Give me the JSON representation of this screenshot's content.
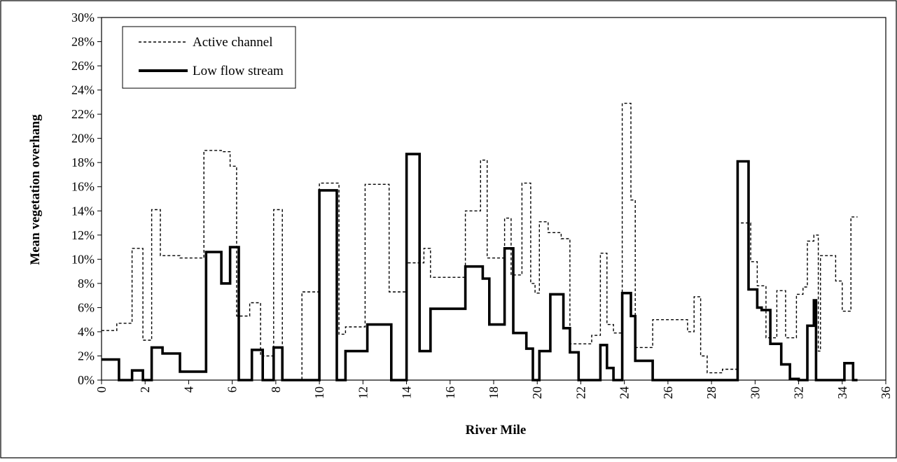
{
  "chart_data": {
    "type": "line",
    "step": true,
    "title": "",
    "xlabel": "River Mile",
    "ylabel": "Mean vegetation overhang",
    "xlim": [
      0,
      36
    ],
    "ylim": [
      0,
      0.3
    ],
    "xticks": [
      "0",
      "2",
      "4",
      "6",
      "8",
      "10",
      "12",
      "14",
      "16",
      "18",
      "20",
      "22",
      "24",
      "26",
      "28",
      "30",
      "32",
      "34",
      "36"
    ],
    "yticks": [
      "0%",
      "2%",
      "4%",
      "6%",
      "8%",
      "10%",
      "12%",
      "14%",
      "16%",
      "18%",
      "20%",
      "22%",
      "24%",
      "26%",
      "28%",
      "30%"
    ],
    "grid": false,
    "legend_position": "top-left",
    "series": [
      {
        "name": "Active channel",
        "style": "dashed",
        "points": [
          [
            0,
            0.041
          ],
          [
            0.7,
            0.041
          ],
          [
            0.7,
            0.047
          ],
          [
            1.4,
            0.047
          ],
          [
            1.4,
            0.109
          ],
          [
            1.9,
            0.109
          ],
          [
            1.9,
            0.033
          ],
          [
            2.3,
            0.033
          ],
          [
            2.3,
            0.141
          ],
          [
            2.7,
            0.141
          ],
          [
            2.7,
            0.103
          ],
          [
            3.6,
            0.103
          ],
          [
            3.6,
            0.101
          ],
          [
            4.7,
            0.101
          ],
          [
            4.7,
            0.19
          ],
          [
            5.5,
            0.19
          ],
          [
            5.5,
            0.189
          ],
          [
            5.9,
            0.189
          ],
          [
            5.9,
            0.177
          ],
          [
            6.2,
            0.177
          ],
          [
            6.2,
            0.053
          ],
          [
            6.8,
            0.053
          ],
          [
            6.8,
            0.064
          ],
          [
            7.3,
            0.064
          ],
          [
            7.3,
            0.02
          ],
          [
            7.9,
            0.02
          ],
          [
            7.9,
            0.141
          ],
          [
            8.3,
            0.141
          ],
          [
            8.3,
            0.0
          ],
          [
            9.2,
            0.0
          ],
          [
            9.2,
            0.073
          ],
          [
            10.0,
            0.073
          ],
          [
            10.0,
            0.163
          ],
          [
            10.9,
            0.163
          ],
          [
            10.9,
            0.038
          ],
          [
            11.2,
            0.038
          ],
          [
            11.2,
            0.044
          ],
          [
            12.1,
            0.044
          ],
          [
            12.1,
            0.162
          ],
          [
            13.2,
            0.162
          ],
          [
            13.2,
            0.073
          ],
          [
            14.0,
            0.073
          ],
          [
            14.0,
            0.097
          ],
          [
            14.8,
            0.097
          ],
          [
            14.8,
            0.109
          ],
          [
            15.1,
            0.109
          ],
          [
            15.1,
            0.085
          ],
          [
            16.7,
            0.085
          ],
          [
            16.7,
            0.14
          ],
          [
            17.4,
            0.14
          ],
          [
            17.4,
            0.182
          ],
          [
            17.7,
            0.182
          ],
          [
            17.7,
            0.101
          ],
          [
            18.5,
            0.101
          ],
          [
            18.5,
            0.134
          ],
          [
            18.8,
            0.134
          ],
          [
            18.8,
            0.087
          ],
          [
            19.3,
            0.087
          ],
          [
            19.3,
            0.163
          ],
          [
            19.7,
            0.163
          ],
          [
            19.7,
            0.08
          ],
          [
            19.9,
            0.08
          ],
          [
            19.9,
            0.072
          ],
          [
            20.1,
            0.072
          ],
          [
            20.1,
            0.131
          ],
          [
            20.5,
            0.131
          ],
          [
            20.5,
            0.122
          ],
          [
            21.1,
            0.122
          ],
          [
            21.1,
            0.117
          ],
          [
            21.5,
            0.117
          ],
          [
            21.5,
            0.03
          ],
          [
            22.5,
            0.03
          ],
          [
            22.5,
            0.037
          ],
          [
            22.9,
            0.037
          ],
          [
            22.9,
            0.105
          ],
          [
            23.2,
            0.105
          ],
          [
            23.2,
            0.046
          ],
          [
            23.5,
            0.046
          ],
          [
            23.5,
            0.039
          ],
          [
            23.9,
            0.039
          ],
          [
            23.9,
            0.229
          ],
          [
            24.3,
            0.229
          ],
          [
            24.3,
            0.149
          ],
          [
            24.5,
            0.149
          ],
          [
            24.5,
            0.027
          ],
          [
            25.3,
            0.027
          ],
          [
            25.3,
            0.05
          ],
          [
            26.9,
            0.05
          ],
          [
            26.9,
            0.04
          ],
          [
            27.2,
            0.04
          ],
          [
            27.2,
            0.069
          ],
          [
            27.5,
            0.069
          ],
          [
            27.5,
            0.02
          ],
          [
            27.8,
            0.02
          ],
          [
            27.8,
            0.006
          ],
          [
            28.5,
            0.006
          ],
          [
            28.5,
            0.009
          ],
          [
            29.2,
            0.009
          ],
          [
            29.2,
            0.13
          ],
          [
            29.8,
            0.13
          ],
          [
            29.8,
            0.098
          ],
          [
            30.1,
            0.098
          ],
          [
            30.1,
            0.078
          ],
          [
            30.5,
            0.078
          ],
          [
            30.5,
            0.035
          ],
          [
            31.0,
            0.035
          ],
          [
            31.0,
            0.074
          ],
          [
            31.4,
            0.074
          ],
          [
            31.4,
            0.035
          ],
          [
            31.9,
            0.035
          ],
          [
            31.9,
            0.071
          ],
          [
            32.2,
            0.071
          ],
          [
            32.2,
            0.077
          ],
          [
            32.4,
            0.077
          ],
          [
            32.4,
            0.115
          ],
          [
            32.7,
            0.115
          ],
          [
            32.7,
            0.12
          ],
          [
            32.9,
            0.12
          ],
          [
            32.9,
            0.024
          ],
          [
            33.0,
            0.024
          ],
          [
            33.0,
            0.103
          ],
          [
            33.7,
            0.103
          ],
          [
            33.7,
            0.082
          ],
          [
            34.0,
            0.082
          ],
          [
            34.0,
            0.057
          ],
          [
            34.4,
            0.057
          ],
          [
            34.4,
            0.135
          ],
          [
            34.7,
            0.135
          ]
        ]
      },
      {
        "name": "Low flow stream",
        "style": "solid",
        "points": [
          [
            0,
            0.017
          ],
          [
            0.8,
            0.017
          ],
          [
            0.8,
            0.0
          ],
          [
            1.4,
            0.0
          ],
          [
            1.4,
            0.008
          ],
          [
            1.9,
            0.008
          ],
          [
            1.9,
            0.0
          ],
          [
            2.3,
            0.0
          ],
          [
            2.3,
            0.027
          ],
          [
            2.8,
            0.027
          ],
          [
            2.8,
            0.022
          ],
          [
            3.6,
            0.022
          ],
          [
            3.6,
            0.007
          ],
          [
            4.8,
            0.007
          ],
          [
            4.8,
            0.106
          ],
          [
            5.5,
            0.106
          ],
          [
            5.5,
            0.08
          ],
          [
            5.9,
            0.08
          ],
          [
            5.9,
            0.11
          ],
          [
            6.3,
            0.11
          ],
          [
            6.3,
            0.0
          ],
          [
            6.9,
            0.0
          ],
          [
            6.9,
            0.025
          ],
          [
            7.4,
            0.025
          ],
          [
            7.4,
            0.0
          ],
          [
            7.9,
            0.0
          ],
          [
            7.9,
            0.027
          ],
          [
            8.3,
            0.027
          ],
          [
            8.3,
            0.0
          ],
          [
            10.0,
            0.0
          ],
          [
            10.0,
            0.157
          ],
          [
            10.8,
            0.157
          ],
          [
            10.8,
            0.0
          ],
          [
            11.2,
            0.0
          ],
          [
            11.2,
            0.024
          ],
          [
            12.2,
            0.024
          ],
          [
            12.2,
            0.046
          ],
          [
            13.3,
            0.046
          ],
          [
            13.3,
            0.0
          ],
          [
            14.0,
            0.0
          ],
          [
            14.0,
            0.187
          ],
          [
            14.6,
            0.187
          ],
          [
            14.6,
            0.024
          ],
          [
            15.1,
            0.024
          ],
          [
            15.1,
            0.059
          ],
          [
            16.7,
            0.059
          ],
          [
            16.7,
            0.094
          ],
          [
            17.5,
            0.094
          ],
          [
            17.5,
            0.084
          ],
          [
            17.8,
            0.084
          ],
          [
            17.8,
            0.046
          ],
          [
            18.5,
            0.046
          ],
          [
            18.5,
            0.109
          ],
          [
            18.9,
            0.109
          ],
          [
            18.9,
            0.039
          ],
          [
            19.5,
            0.039
          ],
          [
            19.5,
            0.026
          ],
          [
            19.8,
            0.026
          ],
          [
            19.8,
            0.0
          ],
          [
            20.1,
            0.0
          ],
          [
            20.1,
            0.024
          ],
          [
            20.6,
            0.024
          ],
          [
            20.6,
            0.071
          ],
          [
            21.2,
            0.071
          ],
          [
            21.2,
            0.043
          ],
          [
            21.5,
            0.043
          ],
          [
            21.5,
            0.023
          ],
          [
            21.9,
            0.023
          ],
          [
            21.9,
            0.0
          ],
          [
            22.9,
            0.0
          ],
          [
            22.9,
            0.029
          ],
          [
            23.2,
            0.029
          ],
          [
            23.2,
            0.01
          ],
          [
            23.5,
            0.01
          ],
          [
            23.5,
            0.0
          ],
          [
            23.9,
            0.0
          ],
          [
            23.9,
            0.072
          ],
          [
            24.3,
            0.072
          ],
          [
            24.3,
            0.053
          ],
          [
            24.5,
            0.053
          ],
          [
            24.5,
            0.016
          ],
          [
            25.3,
            0.016
          ],
          [
            25.3,
            0.0
          ],
          [
            29.2,
            0.0
          ],
          [
            29.2,
            0.181
          ],
          [
            29.7,
            0.181
          ],
          [
            29.7,
            0.075
          ],
          [
            30.1,
            0.075
          ],
          [
            30.1,
            0.06
          ],
          [
            30.3,
            0.06
          ],
          [
            30.3,
            0.058
          ],
          [
            30.7,
            0.058
          ],
          [
            30.7,
            0.03
          ],
          [
            31.2,
            0.03
          ],
          [
            31.2,
            0.013
          ],
          [
            31.6,
            0.013
          ],
          [
            31.6,
            0.001
          ],
          [
            32.0,
            0.001
          ],
          [
            32.0,
            0.0
          ],
          [
            32.4,
            0.0
          ],
          [
            32.4,
            0.045
          ],
          [
            32.7,
            0.045
          ],
          [
            32.7,
            0.066
          ],
          [
            32.8,
            0.066
          ],
          [
            32.8,
            0.0
          ],
          [
            34.1,
            0.0
          ],
          [
            34.1,
            0.014
          ],
          [
            34.5,
            0.014
          ],
          [
            34.5,
            0.0
          ],
          [
            34.7,
            0.0
          ]
        ]
      }
    ]
  }
}
